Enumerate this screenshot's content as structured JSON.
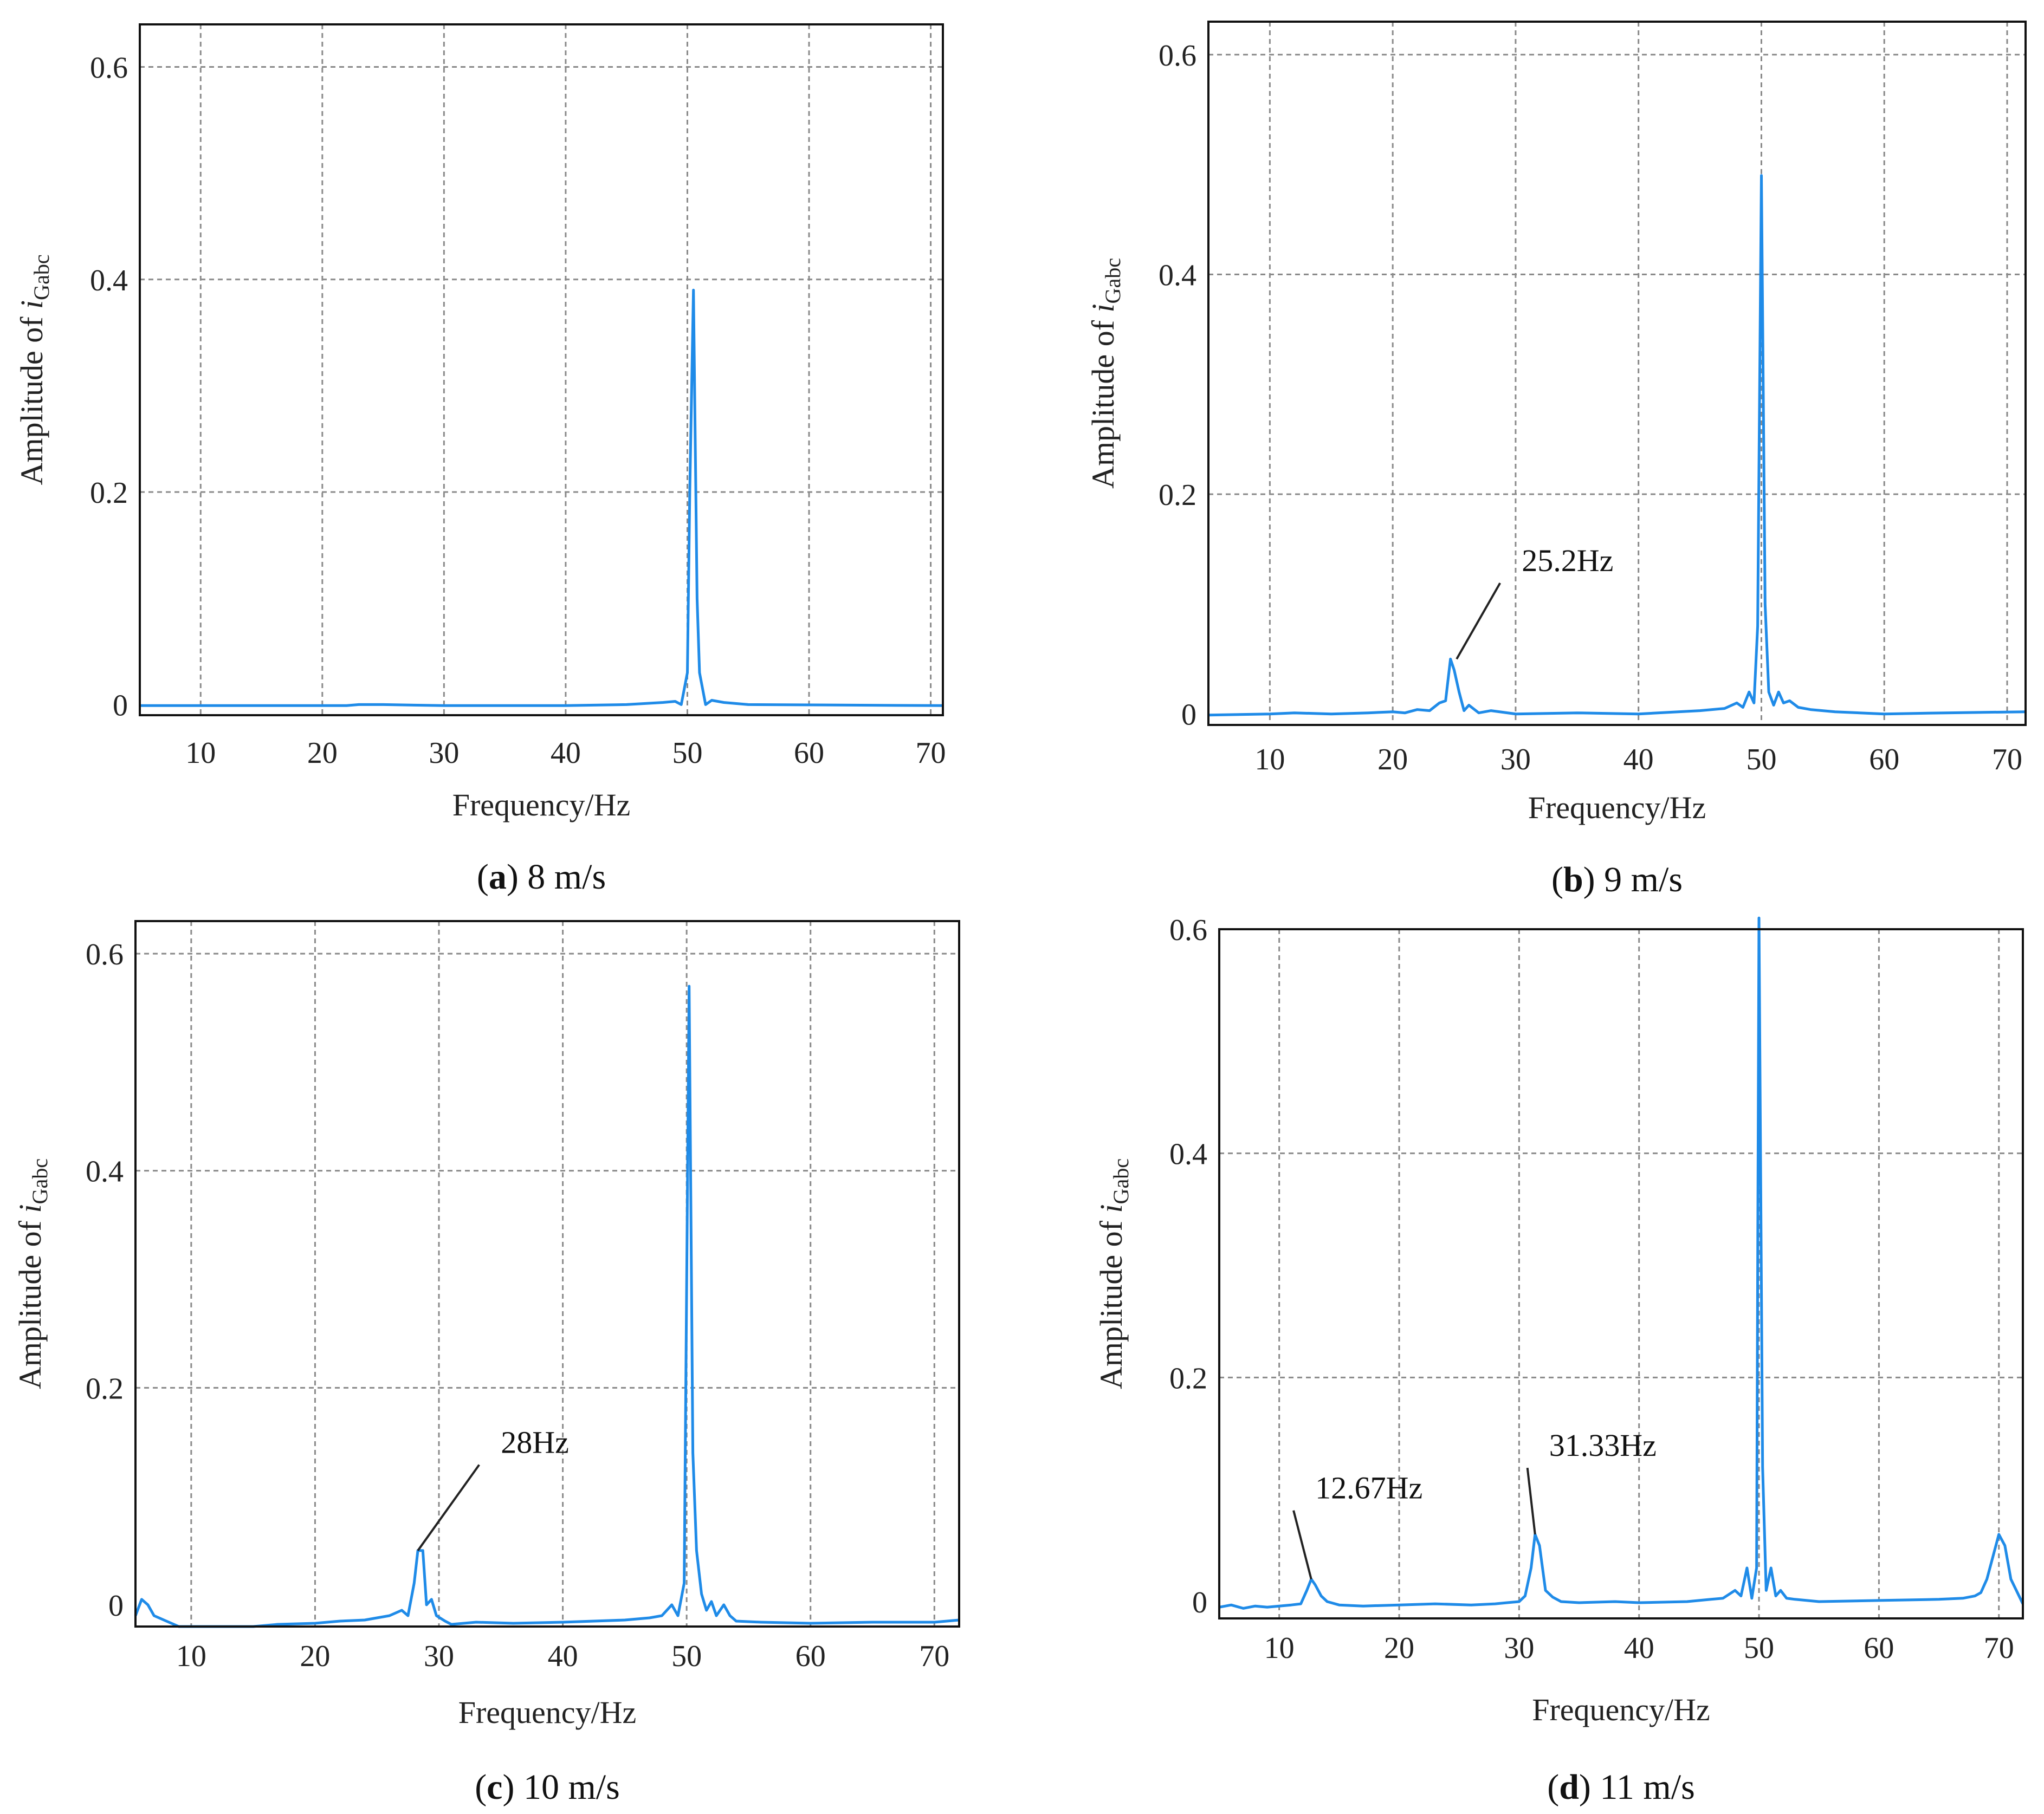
{
  "colors": {
    "series": "#1f8be8",
    "grid": "#8a8a8a",
    "frame": "#111111"
  },
  "chart_data": [
    {
      "id": "a",
      "type": "line",
      "caption_letter": "a",
      "caption_rest": " 8 m/s",
      "xlabel": "Frequency/Hz",
      "ylabel_main": "Amplitude of ",
      "ylabel_var": "i",
      "ylabel_sub": "Gabc",
      "xlim": [
        5,
        71
      ],
      "ylim": [
        -0.01,
        0.64
      ],
      "xticks": [
        10,
        20,
        30,
        40,
        50,
        60,
        70
      ],
      "yticks": [
        0,
        0.2,
        0.4,
        0.6
      ],
      "ytick_labels": [
        "0",
        "0.2",
        "0.4",
        "0.6"
      ],
      "series": [
        {
          "name": "Amplitude",
          "x": [
            5,
            22,
            23,
            24,
            25,
            30,
            40,
            45,
            48,
            49,
            49.5,
            50,
            50.2,
            50.5,
            50.8,
            51,
            51.5,
            52,
            53,
            55,
            71
          ],
          "y": [
            -0.001,
            -0.001,
            0.0,
            0.0,
            0.0,
            -0.001,
            -0.001,
            0.0,
            0.002,
            0.003,
            0.0,
            0.03,
            0.2,
            0.39,
            0.1,
            0.03,
            0.0,
            0.004,
            0.002,
            0.0,
            -0.001
          ]
        }
      ],
      "annotations": []
    },
    {
      "id": "b",
      "type": "line",
      "caption_letter": "b",
      "caption_rest": " 9 m/s",
      "xlabel": "Frequency/Hz",
      "ylabel_main": "Amplitude of ",
      "ylabel_var": "i",
      "ylabel_sub": "Gabc",
      "xlim": [
        5,
        71.5
      ],
      "ylim": [
        -0.01,
        0.63
      ],
      "xticks": [
        10,
        20,
        30,
        40,
        50,
        60,
        70
      ],
      "yticks": [
        0,
        0.2,
        0.4,
        0.6
      ],
      "ytick_labels": [
        "0",
        "0.2",
        "0.4",
        "0.6"
      ],
      "series": [
        {
          "name": "Amplitude",
          "x": [
            5,
            10,
            12,
            15,
            18,
            20,
            21,
            22,
            23,
            23.8,
            24.3,
            24.7,
            25.0,
            25.4,
            25.8,
            26.2,
            27,
            28,
            30,
            35,
            40,
            45,
            47,
            48,
            48.5,
            49,
            49.4,
            49.7,
            50.0,
            50.3,
            50.6,
            51,
            51.4,
            51.8,
            52.3,
            53,
            54,
            56,
            60,
            65,
            71.5
          ],
          "y": [
            -0.001,
            0.0,
            0.001,
            0.0,
            0.001,
            0.002,
            0.001,
            0.004,
            0.003,
            0.01,
            0.012,
            0.05,
            0.04,
            0.02,
            0.003,
            0.008,
            0.001,
            0.003,
            0.0,
            0.001,
            0.0,
            0.003,
            0.005,
            0.01,
            0.006,
            0.02,
            0.01,
            0.08,
            0.49,
            0.1,
            0.02,
            0.008,
            0.02,
            0.01,
            0.012,
            0.006,
            0.004,
            0.002,
            0.0,
            0.001,
            0.002
          ]
        }
      ],
      "annotations": [
        {
          "text": "25.2Hz",
          "x": 25.2,
          "y": 0.05,
          "text_x": 30.5,
          "text_y": 0.13
        }
      ]
    },
    {
      "id": "c",
      "type": "line",
      "caption_letter": "c",
      "caption_rest": " 10 m/s",
      "xlabel": "Frequency/Hz",
      "ylabel_main": "Amplitude of ",
      "ylabel_var": "i",
      "ylabel_sub": "Gabc",
      "xlim": [
        5.5,
        72
      ],
      "ylim": [
        -0.02,
        0.63
      ],
      "xticks": [
        10,
        20,
        30,
        40,
        50,
        60,
        70
      ],
      "yticks": [
        0,
        0.2,
        0.4,
        0.6
      ],
      "ytick_labels": [
        "0",
        "0.2",
        "0.4",
        "0.6"
      ],
      "series": [
        {
          "name": "Amplitude",
          "x": [
            5.5,
            6.0,
            6.5,
            7.0,
            8.0,
            9.0,
            10,
            12,
            15,
            17,
            20,
            22,
            24,
            25,
            26,
            27,
            27.5,
            28.0,
            28.3,
            28.7,
            29.0,
            29.4,
            29.8,
            30.5,
            31,
            33,
            36,
            40,
            45,
            47,
            48,
            48.8,
            49.3,
            49.8,
            50.2,
            50.5,
            50.8,
            51.2,
            51.6,
            52,
            52.4,
            53,
            53.5,
            54,
            56,
            60,
            65,
            70,
            72
          ],
          "y": [
            -0.01,
            0.005,
            0.0,
            -0.01,
            -0.015,
            -0.02,
            -0.02,
            -0.02,
            -0.02,
            -0.018,
            -0.017,
            -0.015,
            -0.014,
            -0.012,
            -0.01,
            -0.005,
            -0.01,
            0.02,
            0.05,
            0.05,
            0.0,
            0.005,
            -0.01,
            -0.015,
            -0.018,
            -0.016,
            -0.017,
            -0.016,
            -0.014,
            -0.012,
            -0.01,
            0.0,
            -0.01,
            0.02,
            0.57,
            0.14,
            0.05,
            0.01,
            -0.005,
            0.003,
            -0.01,
            0.0,
            -0.01,
            -0.015,
            -0.016,
            -0.017,
            -0.016,
            -0.016,
            -0.014
          ]
        }
      ],
      "annotations": [
        {
          "text": "28Hz",
          "x": 28.3,
          "y": 0.05,
          "text_x": 35,
          "text_y": 0.14
        }
      ]
    },
    {
      "id": "d",
      "type": "line",
      "caption_letter": "d",
      "caption_rest": " 11 m/s",
      "xlabel": "Frequency/Hz",
      "ylabel_main": "Amplitude of ",
      "ylabel_var": "i",
      "ylabel_sub": "Gabc",
      "xlim": [
        5,
        72
      ],
      "ylim": [
        -0.015,
        0.6
      ],
      "xticks": [
        10,
        20,
        30,
        40,
        50,
        60,
        70
      ],
      "yticks": [
        0,
        0.2,
        0.4,
        0.6
      ],
      "ytick_labels": [
        "0",
        "0.2",
        "0.4",
        "0.6"
      ],
      "series": [
        {
          "name": "Amplitude",
          "x": [
            5,
            6,
            7,
            8,
            9,
            10,
            11,
            11.8,
            12.3,
            12.67,
            13.0,
            13.5,
            14,
            15,
            17,
            20,
            23,
            26,
            28,
            29,
            30,
            30.5,
            31.0,
            31.33,
            31.7,
            32.2,
            32.8,
            33.5,
            35,
            38,
            40,
            44,
            46,
            47,
            48,
            48.5,
            49,
            49.4,
            49.8,
            50.0,
            50.3,
            50.6,
            51,
            51.4,
            51.8,
            52.3,
            53,
            55,
            60,
            65,
            67,
            68,
            68.5,
            69,
            69.5,
            70.0,
            70.5,
            71,
            72
          ],
          "y": [
            -0.005,
            -0.003,
            -0.006,
            -0.004,
            -0.005,
            -0.004,
            -0.003,
            -0.002,
            0.01,
            0.02,
            0.015,
            0.005,
            0.0,
            -0.003,
            -0.004,
            -0.003,
            -0.002,
            -0.003,
            -0.002,
            -0.001,
            0.0,
            0.005,
            0.03,
            0.06,
            0.05,
            0.01,
            0.004,
            0.0,
            -0.001,
            0.0,
            -0.001,
            0.0,
            0.002,
            0.003,
            0.01,
            0.005,
            0.03,
            0.003,
            0.03,
            0.61,
            0.12,
            0.01,
            0.03,
            0.005,
            0.01,
            0.003,
            0.002,
            0.0,
            0.001,
            0.002,
            0.003,
            0.005,
            0.008,
            0.02,
            0.04,
            0.06,
            0.05,
            0.02,
            -0.002
          ]
        }
      ],
      "annotations": [
        {
          "text": "12.67Hz",
          "x": 12.67,
          "y": 0.02,
          "text_x": 13,
          "text_y": 0.092
        },
        {
          "text": "31.33Hz",
          "x": 31.33,
          "y": 0.06,
          "text_x": 32.5,
          "text_y": 0.13
        }
      ]
    }
  ]
}
